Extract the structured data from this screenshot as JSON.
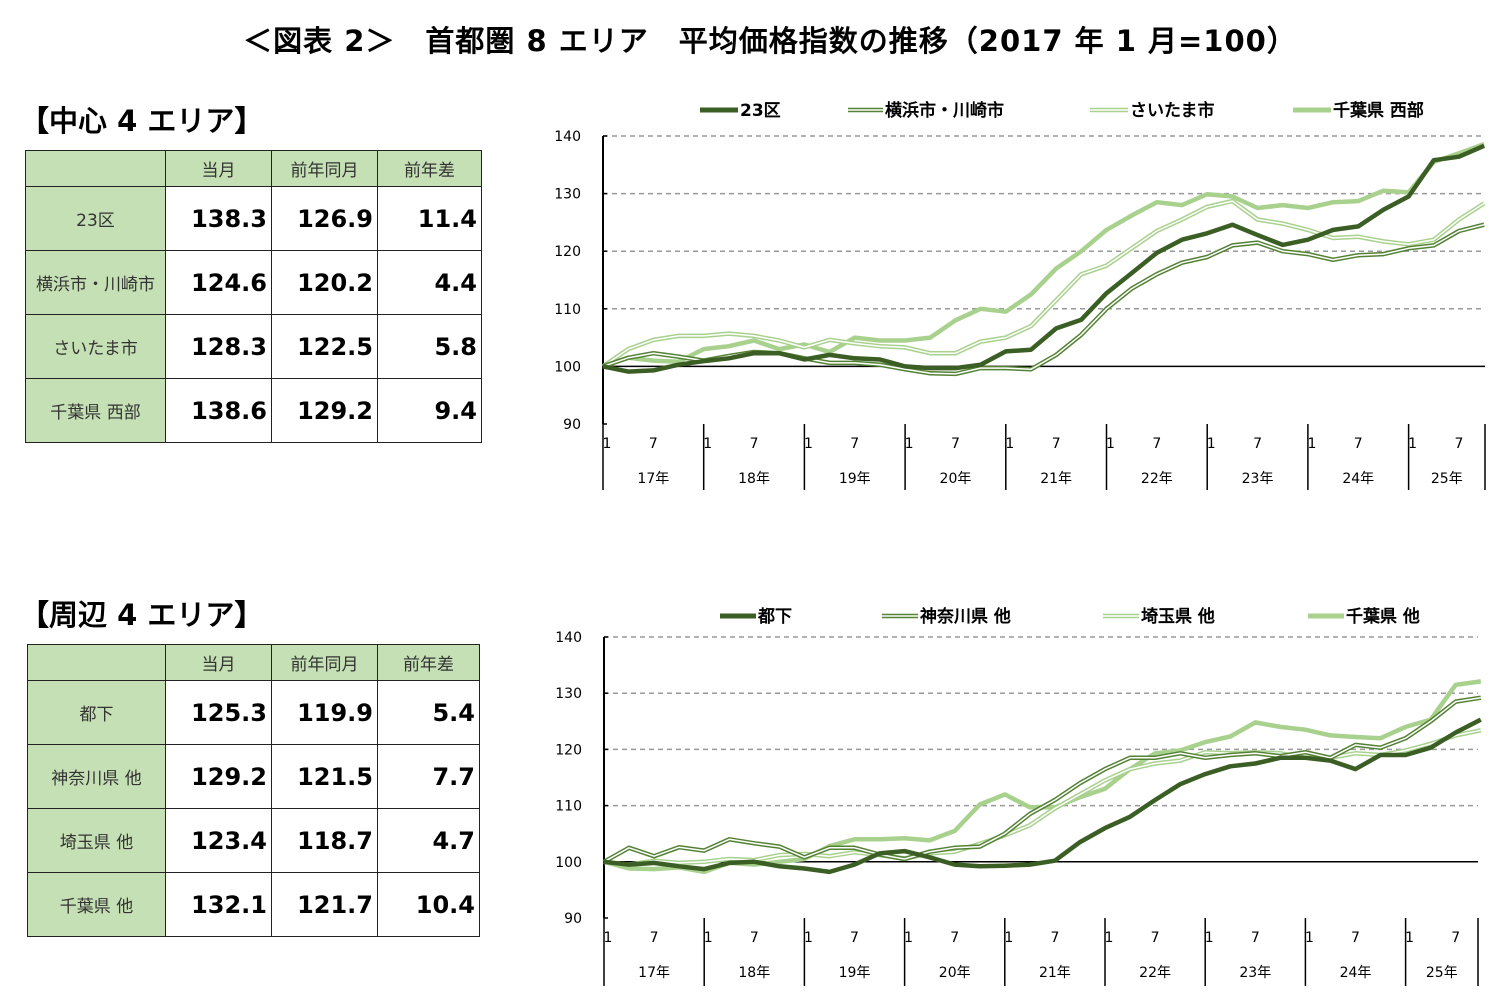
{
  "title": "＜図表 2＞　首都圏 8 エリア　平均価格指数の推移（2017 年 1 月=100）",
  "top_section": {
    "heading": "【中心 4 エリア】",
    "columns": [
      "",
      "当月",
      "前年同月",
      "前年差"
    ],
    "rows": [
      {
        "area": "23区",
        "current": "138.3",
        "prev_year": "126.9",
        "diff": "11.4"
      },
      {
        "area": "横浜市・川崎市",
        "current": "124.6",
        "prev_year": "120.2",
        "diff": "4.4"
      },
      {
        "area": "さいたま市",
        "current": "128.3",
        "prev_year": "122.5",
        "diff": "5.8"
      },
      {
        "area": "千葉県 西部",
        "current": "138.6",
        "prev_year": "129.2",
        "diff": "9.4"
      }
    ]
  },
  "bottom_section": {
    "heading": "【周辺 4 エリア】",
    "columns": [
      "",
      "当月",
      "前年同月",
      "前年差"
    ],
    "rows": [
      {
        "area": "都下",
        "current": "125.3",
        "prev_year": "119.9",
        "diff": "5.4"
      },
      {
        "area": "神奈川県 他",
        "current": "129.2",
        "prev_year": "121.5",
        "diff": "7.7"
      },
      {
        "area": "埼玉県 他",
        "current": "123.4",
        "prev_year": "118.7",
        "diff": "4.7"
      },
      {
        "area": "千葉県 他",
        "current": "132.1",
        "prev_year": "121.7",
        "diff": "10.4"
      }
    ]
  },
  "chart_data": [
    {
      "type": "line",
      "ylim": [
        90,
        140
      ],
      "yticks": [
        90,
        100,
        110,
        120,
        130,
        140
      ],
      "grid": "dashed horizontal",
      "legend": "top",
      "month_ticks": [
        "1",
        "7"
      ],
      "year_labels": [
        "17年",
        "18年",
        "19年",
        "20年",
        "21年",
        "22年",
        "23年",
        "24年",
        "25年"
      ],
      "x": [
        "2017-01",
        "2017-04",
        "2017-07",
        "2017-10",
        "2018-01",
        "2018-04",
        "2018-07",
        "2018-10",
        "2019-01",
        "2019-04",
        "2019-07",
        "2019-10",
        "2020-01",
        "2020-04",
        "2020-07",
        "2020-10",
        "2021-01",
        "2021-04",
        "2021-07",
        "2021-10",
        "2022-01",
        "2022-04",
        "2022-07",
        "2022-10",
        "2023-01",
        "2023-04",
        "2023-07",
        "2023-10",
        "2024-01",
        "2024-04",
        "2024-07",
        "2024-10",
        "2025-01",
        "2025-04",
        "2025-07",
        "2025-10"
      ],
      "series": [
        {
          "name": "23区",
          "color": "#3b5e24",
          "style": "thick",
          "values": [
            100,
            99.1,
            99.3,
            100.3,
            100.9,
            101.4,
            102.3,
            102.3,
            101.2,
            102.0,
            101.4,
            101.2,
            100,
            99.7,
            99.7,
            100.3,
            102.6,
            102.9,
            106.6,
            108.1,
            112.7,
            116.2,
            119.7,
            122,
            123.1,
            124.6,
            122.8,
            121.1,
            122,
            123.7,
            124.3,
            127.2,
            129.5,
            135.8,
            136.4,
            138.3
          ]
        },
        {
          "name": "横浜市・川崎市",
          "color": "#548235",
          "style": "double",
          "values": [
            100,
            101.5,
            102.3,
            101.7,
            101,
            101.8,
            102.5,
            102.3,
            101.4,
            100.6,
            100.6,
            100.3,
            99.5,
            98.8,
            98.7,
            99.7,
            99.7,
            99.5,
            102,
            105.5,
            110,
            113.5,
            116,
            118,
            119,
            121,
            121.5,
            120,
            119.5,
            118.5,
            119.3,
            119.5,
            120.5,
            121,
            123.5,
            124.6
          ]
        },
        {
          "name": "さいたま市",
          "color": "#a9d18e",
          "style": "double",
          "values": [
            100,
            103,
            104.6,
            105.3,
            105.3,
            105.7,
            105.3,
            104.5,
            103.3,
            104.6,
            104,
            103.5,
            103.3,
            102.3,
            102.3,
            104.3,
            105,
            107,
            111.5,
            116,
            117.5,
            120.5,
            123.5,
            125.5,
            127.7,
            128.7,
            125.5,
            124.8,
            123.7,
            122.3,
            122.5,
            121.7,
            121.2,
            122,
            125.5,
            128.3
          ]
        },
        {
          "name": "千葉県 西部",
          "color": "#a9d18e",
          "style": "thick",
          "values": [
            100,
            101.5,
            101,
            100.8,
            103,
            103.5,
            104.5,
            103,
            103.8,
            102.5,
            105,
            104.5,
            104.5,
            105,
            108,
            110,
            109.5,
            112.5,
            117,
            120,
            123.7,
            126.2,
            128.5,
            128,
            129.9,
            129.5,
            127.5,
            128,
            127.5,
            128.5,
            128.7,
            130.5,
            130.2,
            135.5,
            137,
            138.6
          ]
        }
      ]
    },
    {
      "type": "line",
      "ylim": [
        90,
        140
      ],
      "yticks": [
        90,
        100,
        110,
        120,
        130,
        140
      ],
      "grid": "dashed horizontal",
      "legend": "top",
      "month_ticks": [
        "1",
        "7"
      ],
      "year_labels": [
        "17年",
        "18年",
        "19年",
        "20年",
        "21年",
        "22年",
        "23年",
        "24年",
        "25年"
      ],
      "x": [
        "2017-01",
        "2017-04",
        "2017-07",
        "2017-10",
        "2018-01",
        "2018-04",
        "2018-07",
        "2018-10",
        "2019-01",
        "2019-04",
        "2019-07",
        "2019-10",
        "2020-01",
        "2020-04",
        "2020-07",
        "2020-10",
        "2021-01",
        "2021-04",
        "2021-07",
        "2021-10",
        "2022-01",
        "2022-04",
        "2022-07",
        "2022-10",
        "2023-01",
        "2023-04",
        "2023-07",
        "2023-10",
        "2024-01",
        "2024-04",
        "2024-07",
        "2024-10",
        "2025-01",
        "2025-04",
        "2025-07",
        "2025-10"
      ],
      "series": [
        {
          "name": "都下",
          "color": "#3b5e24",
          "style": "thick",
          "values": [
            100,
            99.5,
            99.8,
            99.2,
            98.7,
            99.8,
            100,
            99.2,
            98.8,
            98.2,
            99.5,
            101.5,
            101.9,
            100.8,
            99.5,
            99.2,
            99.3,
            99.5,
            100.2,
            103.5,
            106,
            108,
            111,
            113.8,
            115.6,
            117,
            117.5,
            118.5,
            118.5,
            118,
            116.5,
            119,
            119,
            120.3,
            123,
            125.3
          ]
        },
        {
          "name": "神奈川県 他",
          "color": "#548235",
          "style": "double",
          "values": [
            100,
            102.5,
            101,
            102.6,
            102,
            104,
            103.3,
            102.7,
            100.8,
            102.5,
            102.5,
            101.3,
            100.5,
            101.8,
            102.5,
            102.7,
            105,
            108.5,
            111,
            114,
            116.5,
            118.5,
            118.5,
            119.3,
            118.5,
            119,
            119.3,
            118.8,
            119.5,
            118.5,
            120.8,
            120.3,
            122,
            125,
            128.5,
            129.2
          ]
        },
        {
          "name": "埼玉県 他",
          "color": "#a9d18e",
          "style": "double",
          "values": [
            100,
            99.5,
            100.2,
            99.8,
            100,
            100.5,
            100.3,
            101.2,
            101.4,
            101,
            101.7,
            101.2,
            100.6,
            101.5,
            101.8,
            103.2,
            104.7,
            106.5,
            109.5,
            112,
            114.5,
            116.5,
            117.5,
            118,
            119.5,
            119.3,
            119.5,
            119.3,
            118.5,
            118.5,
            119.3,
            119,
            119.8,
            121,
            122.5,
            123.4
          ]
        },
        {
          "name": "千葉県 他",
          "color": "#a9d18e",
          "style": "thick",
          "values": [
            100,
            98.8,
            98.7,
            99,
            98.2,
            99.8,
            99.5,
            100,
            100.5,
            102.8,
            104,
            104,
            104.2,
            103.8,
            105.5,
            110.2,
            112,
            109.7,
            109.7,
            111.5,
            113,
            116.5,
            119.3,
            119.8,
            121.3,
            122.3,
            124.8,
            124,
            123.5,
            122.5,
            122.2,
            122,
            124,
            125.3,
            131.5,
            132.1
          ]
        }
      ]
    }
  ]
}
